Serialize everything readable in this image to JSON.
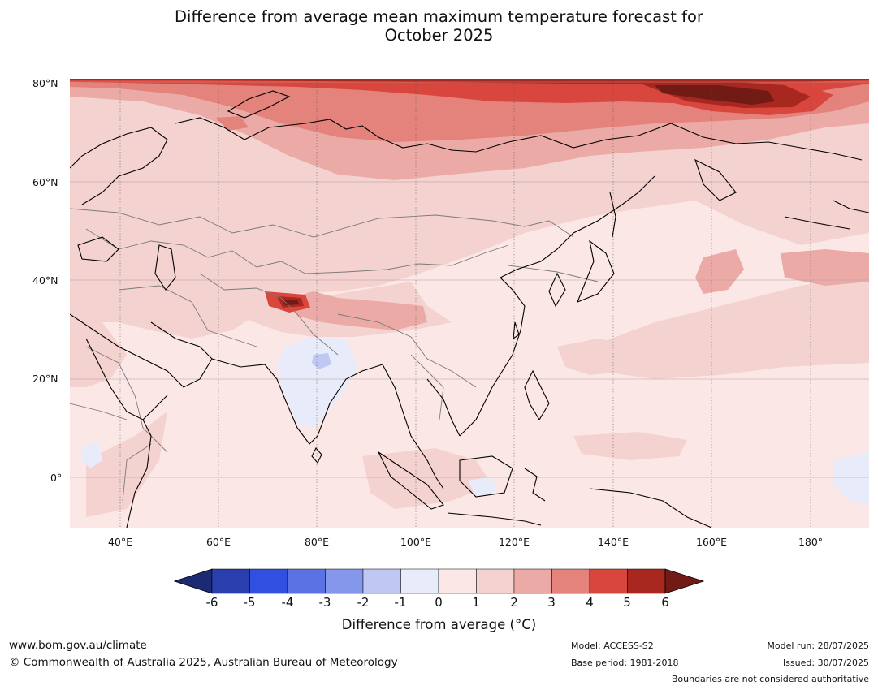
{
  "title_line1": "Difference from average mean maximum temperature forecast for",
  "title_line2": "October 2025",
  "lat_labels": [
    "80°N",
    "60°N",
    "40°N",
    "20°N",
    "0°"
  ],
  "lon_labels": [
    "40°E",
    "60°E",
    "80°E",
    "100°E",
    "120°E",
    "140°E",
    "160°E",
    "180°"
  ],
  "colorbar": {
    "ticks": [
      "-6",
      "-5",
      "-4",
      "-3",
      "-2",
      "-1",
      "0",
      "1",
      "2",
      "3",
      "4",
      "5",
      "6"
    ],
    "colors": [
      "#1b2a73",
      "#2a3eae",
      "#3050e0",
      "#5a72e4",
      "#8597ea",
      "#bec8f3",
      "#e8ecfa",
      "#fbe8e6",
      "#f4d2cf",
      "#ebaaa6",
      "#e4827c",
      "#d9463d",
      "#a82820",
      "#721a16"
    ],
    "label": "Difference from average (°C)"
  },
  "map_colors": {
    "ocean_base": "#fbe8e6",
    "level_1_2": "#f4d2cf",
    "level_2_3": "#ebaaa6",
    "level_3_4": "#e4827c",
    "level_4_5": "#d9463d",
    "level_5_6": "#a82820",
    "level_6_plus": "#721a16",
    "level_0_m1": "#e8ecfa",
    "level_m1_m2": "#bec8f3"
  },
  "footer": {
    "website": "www.bom.gov.au/climate",
    "copyright": "© Commonwealth of Australia 2025, Australian Bureau of Meteorology",
    "model": "Model: ACCESS-S2",
    "base_period": "Base period: 1981-2018",
    "model_run": "Model run: 28/07/2025",
    "issued": "Issued: 30/07/2025",
    "disclaimer": "Boundaries are not considered authoritative"
  }
}
